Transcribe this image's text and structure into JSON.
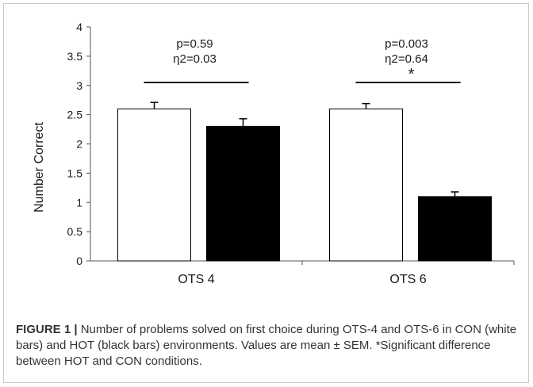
{
  "chart_data": {
    "type": "bar",
    "categories": [
      "OTS 4",
      "OTS 6"
    ],
    "series": [
      {
        "fill": "#ffffff",
        "values": [
          2.6,
          2.6
        ],
        "sem": [
          0.11,
          0.09
        ]
      },
      {
        "fill": "#000000",
        "values": [
          2.3,
          1.1
        ],
        "sem": [
          0.13,
          0.08
        ]
      }
    ],
    "ylabel": "Number Correct",
    "ylim": [
      0,
      4
    ],
    "yticks": [
      "0",
      "0.5",
      "1",
      "1.5",
      "2",
      "2.5",
      "3",
      "3.5",
      "4"
    ],
    "grid": false,
    "annotations": [
      {
        "group": "OTS 4",
        "p": "p=0.59",
        "eta": "η2=0.03",
        "star": ""
      },
      {
        "group": "OTS 6",
        "p": "p=0.003",
        "eta": "η2=0.64",
        "star": "*"
      }
    ]
  },
  "caption": {
    "label": "FIGURE 1 |",
    "text": " Number of problems solved on first choice during OTS-4 and OTS-6 in CON (white bars) and HOT (black bars) environments. Values are mean ± SEM. *Significant difference between HOT and CON conditions."
  }
}
